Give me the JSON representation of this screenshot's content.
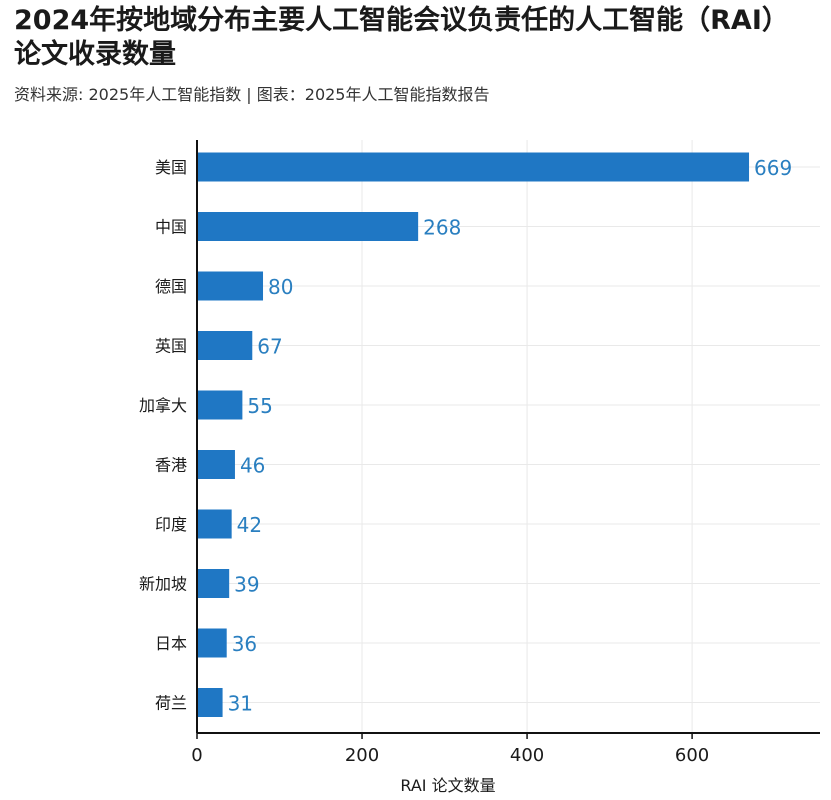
{
  "title": "2024年按地域分布主要人工智能会议负责任的人工智能（RAI）论文收录数量",
  "subtitle": "资料来源: 2025年人工智能指数 | 图表：2025年人工智能指数报告",
  "colors": {
    "bar": "#1f77c4",
    "value_label": "#2a7fc0",
    "grid": "#e9e9e9",
    "axis": "#111111"
  },
  "chart_data": {
    "type": "bar",
    "orientation": "horizontal",
    "categories": [
      "美国",
      "中国",
      "德国",
      "英国",
      "加拿大",
      "香港",
      "印度",
      "新加坡",
      "日本",
      "荷兰"
    ],
    "values": [
      669,
      268,
      80,
      67,
      55,
      46,
      42,
      39,
      36,
      31
    ],
    "value_labels": [
      "669",
      "268",
      "80",
      "67",
      "55",
      "46",
      "42",
      "39",
      "36",
      "31"
    ],
    "xlabel": "RAI 论文数量",
    "ylabel": "",
    "xlim": [
      0,
      755
    ],
    "xticks": [
      0,
      200,
      400,
      600
    ],
    "xtick_labels": [
      "0",
      "200",
      "400",
      "600"
    ],
    "grid": true,
    "legend": "none"
  }
}
